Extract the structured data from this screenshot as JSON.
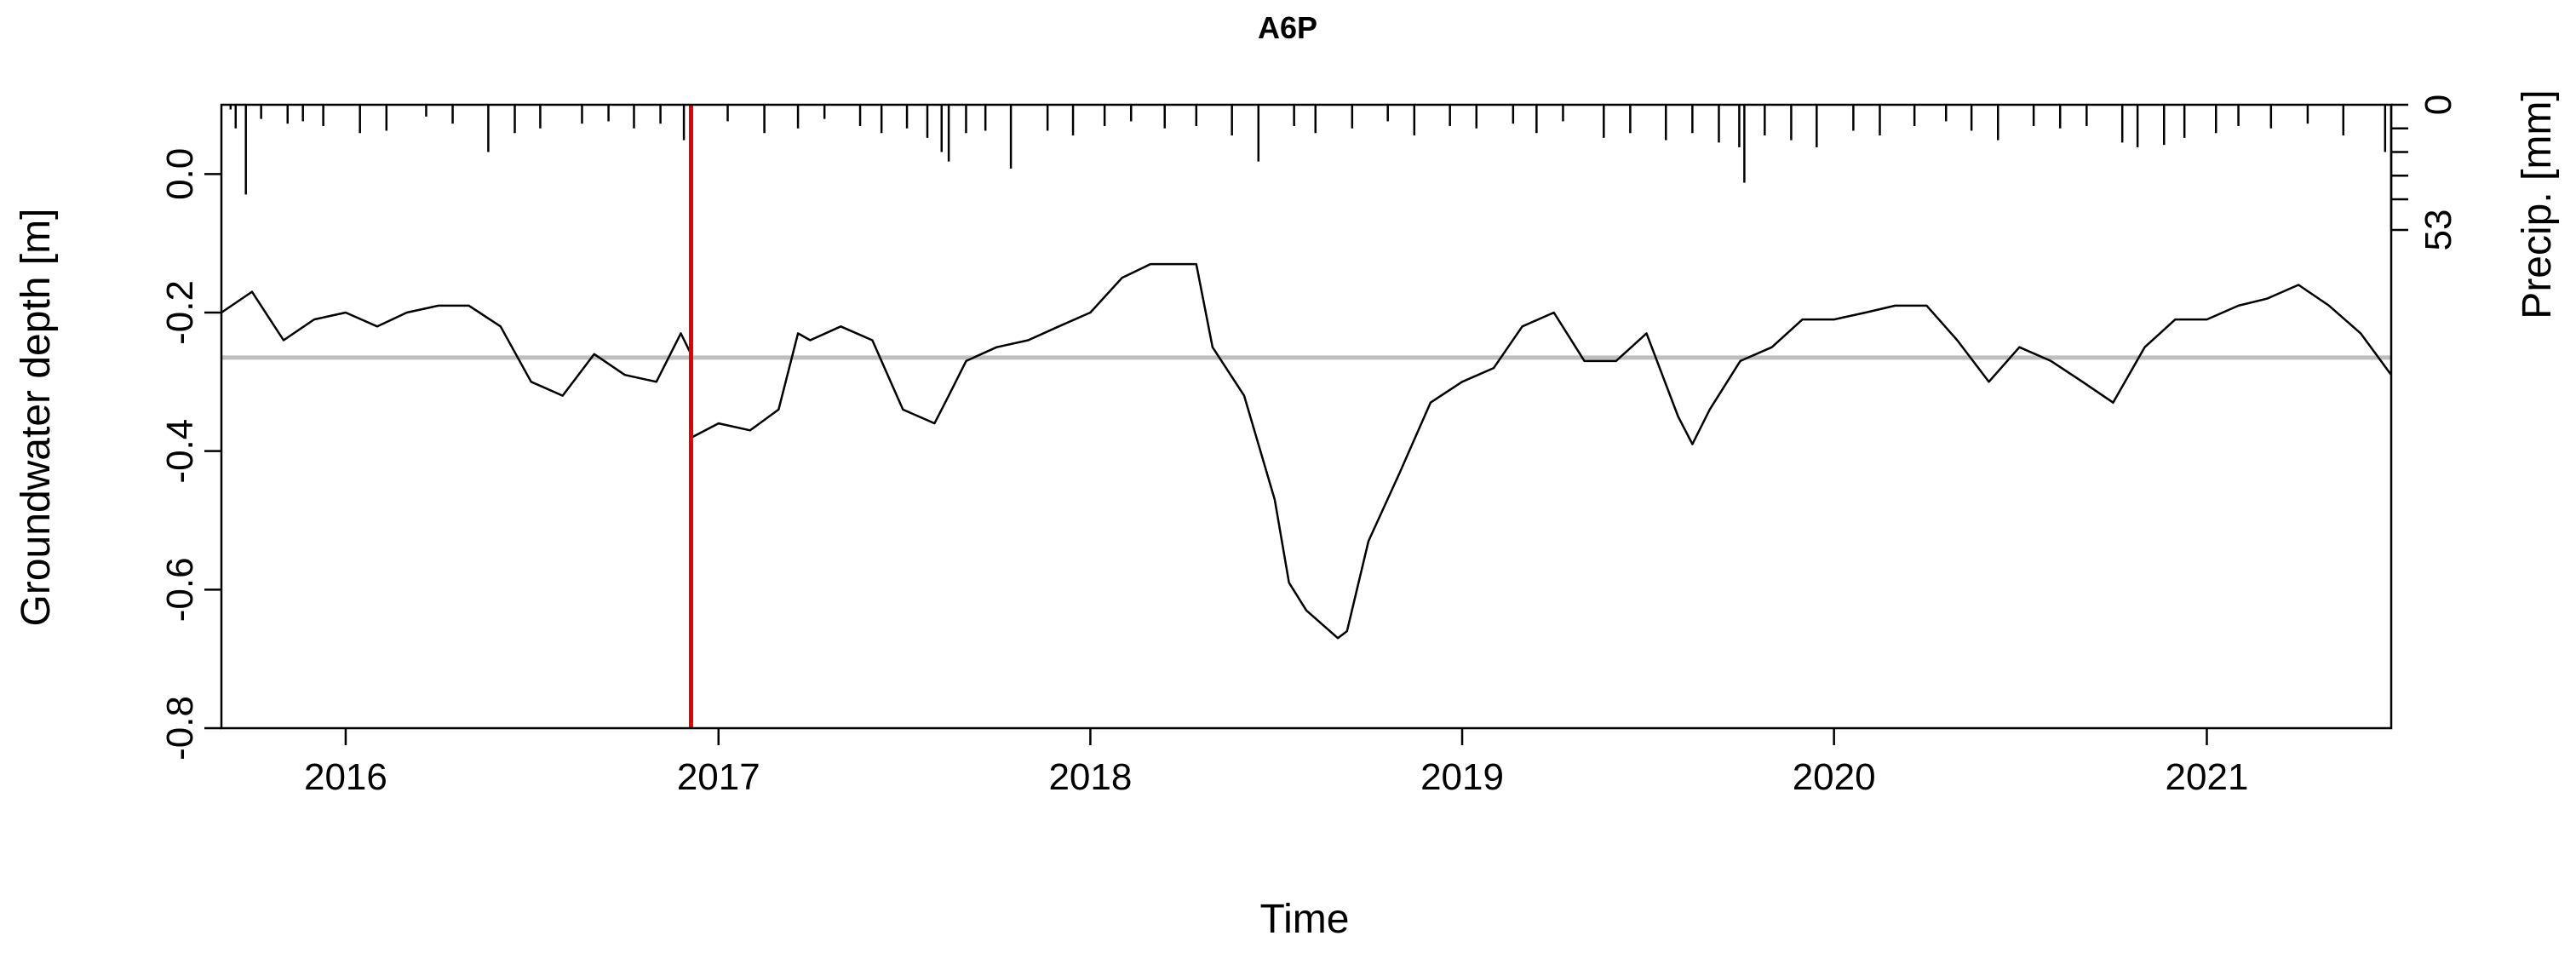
{
  "chart_data": {
    "type": "line",
    "title": "A6P",
    "xlabel": "Time",
    "ylabel": "Groundwater depth [m]",
    "y2label": "Precip. [mm]",
    "x_ticks": [
      "2016",
      "2017",
      "2018",
      "2019",
      "2020",
      "2021"
    ],
    "y_ticks": [
      "0.0",
      "-0.2",
      "-0.4",
      "-0.6",
      "-0.8"
    ],
    "y2_ticks": [
      "0",
      "53"
    ],
    "xlim": [
      "2015-09-01",
      "2021-07-01"
    ],
    "ylim": [
      -0.8,
      0.1
    ],
    "y2lim": [
      0,
      53
    ],
    "grid": false,
    "legend": "none",
    "colors": {
      "series": "#000000",
      "reference_line": "#bebebe",
      "event_line": "#e00000",
      "precip": "#000000"
    },
    "reference_line": {
      "y": -0.265
    },
    "event_line": {
      "x": "2016-12-05"
    },
    "series": [
      {
        "x": [
          "2015-09-01",
          "2015-10-01",
          "2015-11-01",
          "2015-12-01",
          "2016-01-01",
          "2016-02-01",
          "2016-03-01",
          "2016-04-01",
          "2016-05-01",
          "2016-06-01",
          "2016-07-01",
          "2016-08-01",
          "2016-09-01",
          "2016-10-01",
          "2016-11-01",
          "2016-11-25",
          "2016-12-05",
          "2016-12-06",
          "2017-01-01",
          "2017-02-01",
          "2017-03-01",
          "2017-03-20",
          "2017-04-01",
          "2017-05-01",
          "2017-06-01",
          "2017-07-01",
          "2017-08-01",
          "2017-08-15",
          "2017-09-01",
          "2017-10-01",
          "2017-11-01",
          "2017-12-01",
          "2018-01-01",
          "2018-02-01",
          "2018-03-01",
          "2018-04-01",
          "2018-04-15",
          "2018-05-01",
          "2018-06-01",
          "2018-07-01",
          "2018-07-15",
          "2018-08-01",
          "2018-09-01",
          "2018-09-10",
          "2018-10-01",
          "2018-11-01",
          "2018-12-01",
          "2019-01-01",
          "2019-02-01",
          "2019-03-01",
          "2019-04-01",
          "2019-05-01",
          "2019-06-01",
          "2019-07-01",
          "2019-08-01",
          "2019-08-15",
          "2019-09-01",
          "2019-10-01",
          "2019-11-01",
          "2019-12-01",
          "2020-01-01",
          "2020-02-01",
          "2020-03-01",
          "2020-04-01",
          "2020-05-01",
          "2020-06-01",
          "2020-07-01",
          "2020-08-01",
          "2020-09-01",
          "2020-10-01",
          "2020-11-01",
          "2020-12-01",
          "2021-01-01",
          "2021-02-01",
          "2021-03-01",
          "2021-04-01",
          "2021-05-01",
          "2021-06-01",
          "2021-07-01"
        ],
        "y": [
          -0.2,
          -0.17,
          -0.24,
          -0.21,
          -0.2,
          -0.22,
          -0.2,
          -0.19,
          -0.19,
          -0.22,
          -0.3,
          -0.32,
          -0.26,
          -0.29,
          -0.3,
          -0.23,
          -0.26,
          -0.38,
          -0.36,
          -0.37,
          -0.34,
          -0.23,
          -0.24,
          -0.22,
          -0.24,
          -0.34,
          -0.36,
          -0.32,
          -0.27,
          -0.25,
          -0.24,
          -0.22,
          -0.2,
          -0.15,
          -0.13,
          -0.13,
          -0.13,
          -0.25,
          -0.32,
          -0.47,
          -0.59,
          -0.63,
          -0.67,
          -0.66,
          -0.53,
          -0.43,
          -0.33,
          -0.3,
          -0.28,
          -0.22,
          -0.2,
          -0.27,
          -0.27,
          -0.23,
          -0.35,
          -0.39,
          -0.34,
          -0.27,
          -0.25,
          -0.21,
          -0.21,
          -0.2,
          -0.19,
          -0.19,
          -0.24,
          -0.3,
          -0.25,
          -0.27,
          -0.3,
          -0.33,
          -0.25,
          -0.21,
          -0.21,
          -0.19,
          -0.18,
          -0.16,
          -0.19,
          -0.23,
          -0.29
        ]
      }
    ],
    "precip_spikes": [
      {
        "x": "2015-09-10",
        "mm": 2
      },
      {
        "x": "2015-09-15",
        "mm": 10
      },
      {
        "x": "2015-09-25",
        "mm": 38
      },
      {
        "x": "2015-10-10",
        "mm": 6
      },
      {
        "x": "2015-11-05",
        "mm": 8
      },
      {
        "x": "2015-11-20",
        "mm": 7
      },
      {
        "x": "2015-12-10",
        "mm": 9
      },
      {
        "x": "2016-01-15",
        "mm": 12
      },
      {
        "x": "2016-02-10",
        "mm": 11
      },
      {
        "x": "2016-03-20",
        "mm": 5
      },
      {
        "x": "2016-04-15",
        "mm": 8
      },
      {
        "x": "2016-05-20",
        "mm": 20
      },
      {
        "x": "2016-06-15",
        "mm": 12
      },
      {
        "x": "2016-07-10",
        "mm": 10
      },
      {
        "x": "2016-08-20",
        "mm": 8
      },
      {
        "x": "2016-09-15",
        "mm": 7
      },
      {
        "x": "2016-10-10",
        "mm": 10
      },
      {
        "x": "2016-11-05",
        "mm": 8
      },
      {
        "x": "2016-11-28",
        "mm": 15
      },
      {
        "x": "2017-01-10",
        "mm": 7
      },
      {
        "x": "2017-02-15",
        "mm": 12
      },
      {
        "x": "2017-03-20",
        "mm": 10
      },
      {
        "x": "2017-04-15",
        "mm": 6
      },
      {
        "x": "2017-05-20",
        "mm": 9
      },
      {
        "x": "2017-06-10",
        "mm": 12
      },
      {
        "x": "2017-07-05",
        "mm": 10
      },
      {
        "x": "2017-07-25",
        "mm": 14
      },
      {
        "x": "2017-08-08",
        "mm": 20
      },
      {
        "x": "2017-08-15",
        "mm": 24
      },
      {
        "x": "2017-09-01",
        "mm": 12
      },
      {
        "x": "2017-09-20",
        "mm": 11
      },
      {
        "x": "2017-10-15",
        "mm": 27
      },
      {
        "x": "2017-11-20",
        "mm": 11
      },
      {
        "x": "2017-12-15",
        "mm": 13
      },
      {
        "x": "2018-01-15",
        "mm": 9
      },
      {
        "x": "2018-02-10",
        "mm": 7
      },
      {
        "x": "2018-03-15",
        "mm": 10
      },
      {
        "x": "2018-04-15",
        "mm": 9
      },
      {
        "x": "2018-05-20",
        "mm": 13
      },
      {
        "x": "2018-06-15",
        "mm": 24
      },
      {
        "x": "2018-07-20",
        "mm": 9
      },
      {
        "x": "2018-08-10",
        "mm": 12
      },
      {
        "x": "2018-09-15",
        "mm": 10
      },
      {
        "x": "2018-10-20",
        "mm": 7
      },
      {
        "x": "2018-11-15",
        "mm": 13
      },
      {
        "x": "2018-12-20",
        "mm": 9
      },
      {
        "x": "2019-01-15",
        "mm": 10
      },
      {
        "x": "2019-02-20",
        "mm": 8
      },
      {
        "x": "2019-03-15",
        "mm": 12
      },
      {
        "x": "2019-04-10",
        "mm": 7
      },
      {
        "x": "2019-05-20",
        "mm": 14
      },
      {
        "x": "2019-06-15",
        "mm": 12
      },
      {
        "x": "2019-07-20",
        "mm": 15
      },
      {
        "x": "2019-08-15",
        "mm": 12
      },
      {
        "x": "2019-09-10",
        "mm": 16
      },
      {
        "x": "2019-09-30",
        "mm": 18
      },
      {
        "x": "2019-10-05",
        "mm": 33
      },
      {
        "x": "2019-10-25",
        "mm": 13
      },
      {
        "x": "2019-11-20",
        "mm": 15
      },
      {
        "x": "2019-12-15",
        "mm": 18
      },
      {
        "x": "2020-01-20",
        "mm": 11
      },
      {
        "x": "2020-02-15",
        "mm": 13
      },
      {
        "x": "2020-03-20",
        "mm": 9
      },
      {
        "x": "2020-04-20",
        "mm": 7
      },
      {
        "x": "2020-05-15",
        "mm": 11
      },
      {
        "x": "2020-06-10",
        "mm": 15
      },
      {
        "x": "2020-07-15",
        "mm": 9
      },
      {
        "x": "2020-08-10",
        "mm": 10
      },
      {
        "x": "2020-09-05",
        "mm": 9
      },
      {
        "x": "2020-10-10",
        "mm": 16
      },
      {
        "x": "2020-10-25",
        "mm": 18
      },
      {
        "x": "2020-11-20",
        "mm": 17
      },
      {
        "x": "2020-12-10",
        "mm": 14
      },
      {
        "x": "2021-01-10",
        "mm": 12
      },
      {
        "x": "2021-02-01",
        "mm": 9
      },
      {
        "x": "2021-03-05",
        "mm": 10
      },
      {
        "x": "2021-04-10",
        "mm": 8
      },
      {
        "x": "2021-05-15",
        "mm": 13
      },
      {
        "x": "2021-06-25",
        "mm": 20
      }
    ]
  }
}
